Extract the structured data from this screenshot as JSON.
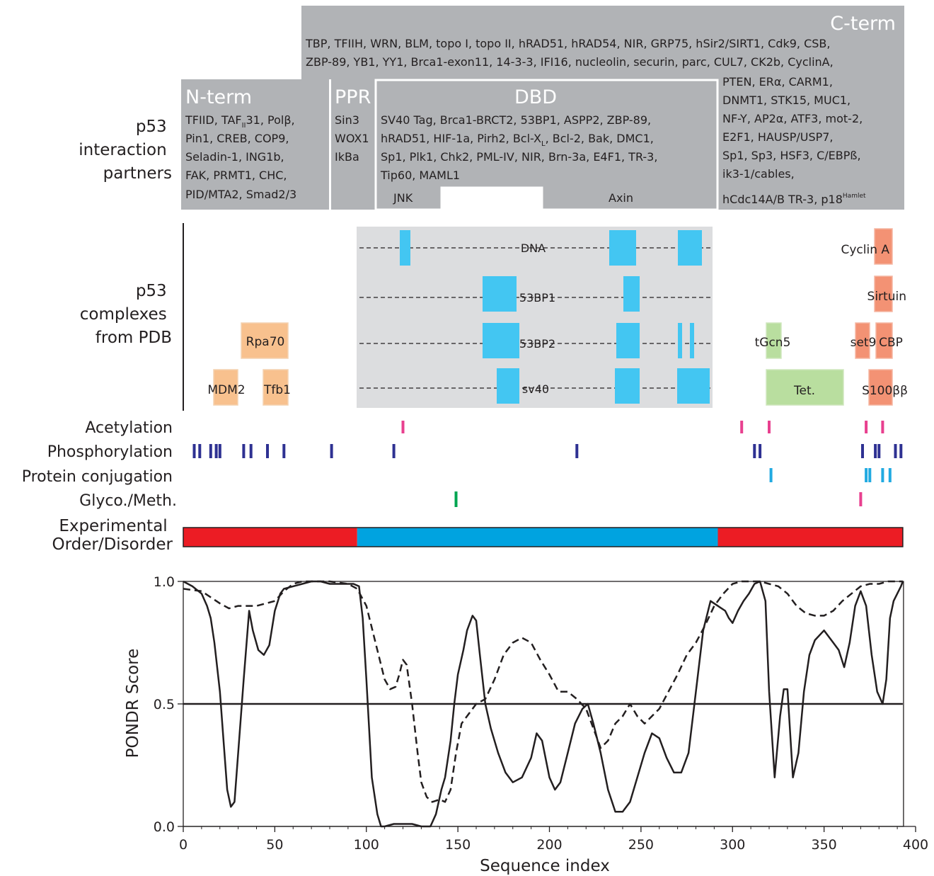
{
  "interaction": {
    "row_label": [
      "p53",
      "interaction",
      "partners"
    ],
    "cterm": {
      "title": "C-term",
      "lines": [
        "TBP, TFIIH, WRN, BLM, topo I, topo II, hRAD51, hRAD54, NIR, GRP75, hSir2/SIRT1, Cdk9, CSB,",
        "ZBP-89, YB1, YY1, Brca1-exon11, 14-3-3, IFI16, nucleolin, securin, parc, CUL7, CK2b, CyclinA,"
      ],
      "side_lines": [
        "PTEN, ERα, CARM1,",
        "DNMT1, STK15, MUC1,",
        "NF-Y, AP2α, ATF3, mot-2,",
        "E2F1, HAUSP/USP7,",
        "Sp1, Sp3, HSF3, C/EBPß,",
        "ik3-1/cables,"
      ],
      "last_line": "hCdc14A/B TR-3, p18",
      "last_sup": "Hamlet"
    },
    "nterm": {
      "title": "N-term",
      "line1_pre": "TFIID, TAF",
      "line1_sub": "II",
      "line1_post": "31, Polβ,",
      "lines": [
        "Pin1, CREB, COP9,",
        "Seladin-1, ING1b,",
        "FAK, PRMT1, CHC,",
        "PID/MTA2, Smad2/3"
      ]
    },
    "ppr": {
      "title": "PPR",
      "lines": [
        "Sin3",
        "WOX1",
        "IkBa"
      ]
    },
    "dbd": {
      "title": "DBD",
      "line1": "SV40 Tag, Brca1-BRCT2, 53BP1, ASPP2, ZBP-89,",
      "line2_pre": "hRAD51, HIF-1a, Pirh2, Bcl-X",
      "line2_sub": "L",
      "line2_post": ", Bcl-2, Bak, DMC1,",
      "lines": [
        "Sp1, Plk1, Chk2, PML-IV, NIR, Brn-3a, E4F1, TR-3,",
        "Tip60, MAML1"
      ],
      "jnk": "JNK",
      "axin": "Axin"
    }
  },
  "complexes": {
    "row_label": [
      "p53",
      "complexes",
      "from PDB"
    ],
    "dbd_rows": [
      "DNA",
      "53BP1",
      "53BP2",
      "sv40"
    ],
    "labels": {
      "rpa70": "Rpa70",
      "mdm2": "MDM2",
      "tfb1": "Tfb1",
      "tgcn5": "tGcn5",
      "tet": "Tet.",
      "cyclin_a": "Cyclin A",
      "sirtuin": "Sirtuin",
      "set9": "set9",
      "cbp": "CBP",
      "s100": "S100ββ"
    },
    "colors": {
      "dbd_bg": "#dcdddf",
      "dbd_box": "#43c6f2",
      "nterm_box": "#f8c18e",
      "tet_box": "#b9de9f",
      "cterm_box": "#f39274"
    }
  },
  "ptm": {
    "rows": [
      {
        "label": "Acetylation",
        "color": "#e8408f",
        "sites": [
          120,
          305,
          320,
          373,
          382
        ]
      },
      {
        "label": "Phosphorylation",
        "color": "#2e3192",
        "sites": [
          6,
          9,
          15,
          18,
          20,
          33,
          37,
          46,
          55,
          81,
          115,
          215,
          312,
          315,
          371,
          378,
          380,
          389,
          392
        ]
      },
      {
        "label": "Protein conjugation",
        "color": "#21aae1",
        "sites": [
          321,
          373,
          375,
          382,
          386
        ]
      },
      {
        "label": "Glyco./Meth.",
        "color": "#00a651",
        "sites": [
          149
        ]
      },
      {
        "label": "Glyco./Meth.",
        "color": "#e8408f",
        "sites": [
          370
        ]
      }
    ]
  },
  "order": {
    "label": [
      "Experimental",
      "Order/Disorder"
    ],
    "segments": [
      {
        "start": 0,
        "end": 95,
        "color": "#ec1c24"
      },
      {
        "start": 95,
        "end": 292,
        "color": "#00a3e0"
      },
      {
        "start": 292,
        "end": 393,
        "color": "#ec1c24"
      }
    ]
  },
  "chart_data": {
    "type": "line",
    "xlabel": "Sequence index",
    "ylabel": "PONDR Score",
    "xlim": [
      0,
      400
    ],
    "ylim": [
      0,
      1
    ],
    "xticks": [
      0,
      50,
      100,
      150,
      200,
      250,
      300,
      350,
      400
    ],
    "yticks": [
      "0.0",
      "0.5",
      "1.0"
    ],
    "threshold": 0.5,
    "series": [
      {
        "style": "solid",
        "x": [
          0,
          5,
          10,
          13,
          15,
          17,
          20,
          22,
          24,
          26,
          28,
          30,
          33,
          36,
          38,
          41,
          44,
          47,
          50,
          53,
          55,
          60,
          65,
          70,
          75,
          80,
          85,
          90,
          93,
          96,
          98,
          100,
          103,
          106,
          108,
          110,
          115,
          120,
          125,
          130,
          135,
          138,
          141,
          143,
          146,
          148,
          150,
          153,
          155,
          158,
          160,
          162,
          165,
          168,
          172,
          176,
          180,
          185,
          190,
          193,
          196,
          200,
          203,
          206,
          210,
          214,
          218,
          221,
          224,
          228,
          232,
          236,
          240,
          244,
          248,
          252,
          256,
          260,
          264,
          268,
          272,
          276,
          280,
          284,
          288,
          292,
          296,
          298,
          300,
          303,
          306,
          309,
          312,
          315,
          318,
          320,
          323,
          326,
          328,
          330,
          333,
          336,
          339,
          342,
          345,
          350,
          355,
          358,
          361,
          364,
          367,
          370,
          373,
          376,
          379,
          382,
          384,
          386,
          388,
          390,
          392,
          393
        ],
        "y": [
          1.0,
          0.98,
          0.95,
          0.9,
          0.85,
          0.75,
          0.55,
          0.35,
          0.15,
          0.08,
          0.1,
          0.3,
          0.6,
          0.88,
          0.8,
          0.72,
          0.7,
          0.74,
          0.88,
          0.95,
          0.97,
          0.98,
          0.99,
          1.0,
          1.0,
          0.99,
          0.99,
          0.99,
          0.99,
          0.98,
          0.85,
          0.6,
          0.2,
          0.05,
          0.0,
          0.0,
          0.01,
          0.01,
          0.01,
          0.0,
          0.0,
          0.05,
          0.15,
          0.2,
          0.35,
          0.5,
          0.62,
          0.72,
          0.8,
          0.86,
          0.84,
          0.7,
          0.5,
          0.4,
          0.3,
          0.22,
          0.18,
          0.2,
          0.28,
          0.38,
          0.35,
          0.2,
          0.15,
          0.18,
          0.3,
          0.42,
          0.48,
          0.5,
          0.42,
          0.3,
          0.15,
          0.06,
          0.06,
          0.1,
          0.2,
          0.3,
          0.38,
          0.36,
          0.28,
          0.22,
          0.22,
          0.3,
          0.55,
          0.8,
          0.92,
          0.9,
          0.88,
          0.85,
          0.83,
          0.88,
          0.92,
          0.95,
          0.99,
          1.0,
          0.92,
          0.55,
          0.2,
          0.45,
          0.56,
          0.56,
          0.2,
          0.3,
          0.55,
          0.7,
          0.76,
          0.8,
          0.75,
          0.72,
          0.65,
          0.75,
          0.9,
          0.96,
          0.9,
          0.7,
          0.55,
          0.5,
          0.6,
          0.85,
          0.92,
          0.95,
          0.98,
          1.0
        ]
      },
      {
        "style": "dashed",
        "x": [
          0,
          10,
          20,
          25,
          30,
          40,
          50,
          55,
          60,
          65,
          70,
          80,
          90,
          95,
          100,
          105,
          110,
          113,
          116,
          118,
          120,
          122,
          125,
          128,
          130,
          133,
          136,
          140,
          143,
          146,
          149,
          152,
          156,
          160,
          165,
          170,
          175,
          180,
          185,
          190,
          195,
          200,
          205,
          210,
          215,
          220,
          225,
          228,
          232,
          236,
          240,
          244,
          248,
          252,
          256,
          260,
          265,
          270,
          275,
          280,
          285,
          290,
          295,
          300,
          305,
          310,
          315,
          320,
          325,
          330,
          335,
          340,
          345,
          350,
          355,
          360,
          365,
          370,
          375,
          380,
          385,
          390,
          393
        ],
        "y": [
          0.97,
          0.96,
          0.91,
          0.89,
          0.9,
          0.9,
          0.92,
          0.96,
          0.99,
          1.0,
          1.0,
          1.0,
          0.99,
          0.97,
          0.9,
          0.75,
          0.6,
          0.56,
          0.57,
          0.62,
          0.68,
          0.66,
          0.5,
          0.3,
          0.18,
          0.12,
          0.1,
          0.11,
          0.1,
          0.15,
          0.3,
          0.42,
          0.46,
          0.5,
          0.52,
          0.6,
          0.7,
          0.75,
          0.77,
          0.75,
          0.68,
          0.62,
          0.55,
          0.55,
          0.52,
          0.48,
          0.38,
          0.32,
          0.35,
          0.42,
          0.45,
          0.5,
          0.45,
          0.42,
          0.45,
          0.48,
          0.55,
          0.62,
          0.7,
          0.75,
          0.82,
          0.9,
          0.95,
          0.99,
          1.0,
          1.0,
          1.0,
          0.99,
          0.98,
          0.95,
          0.9,
          0.87,
          0.86,
          0.86,
          0.88,
          0.92,
          0.95,
          0.98,
          0.99,
          0.99,
          1.0,
          1.0,
          1.0
        ]
      }
    ]
  }
}
